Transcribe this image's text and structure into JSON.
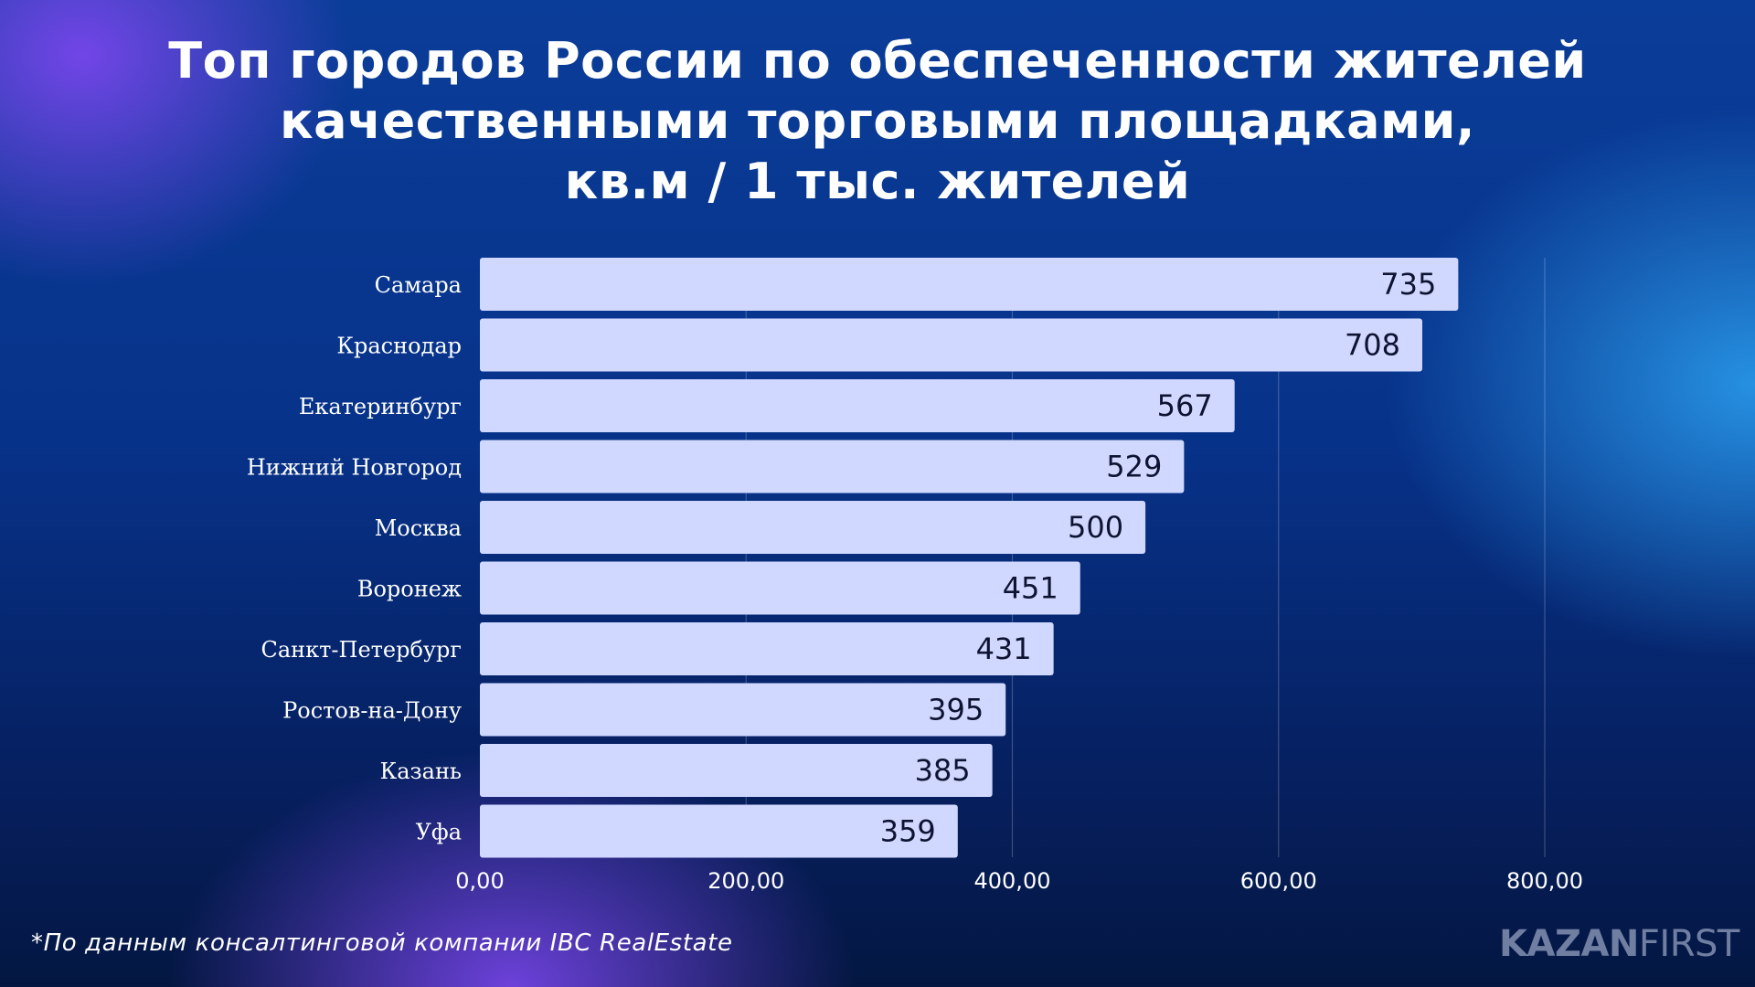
{
  "title_lines": [
    "Топ городов России по обеспеченности жителей",
    "качественными торговыми площадками,",
    "кв.м / 1 тыс. жителей"
  ],
  "footnote": "*По данным консалтинговой компании IBC RealEstate",
  "logo": {
    "bold": "KAZAN",
    "light": "FIRST"
  },
  "colors": {
    "bar": "#d0d8ff",
    "background": "#08398f",
    "text": "#ffffff"
  },
  "chart_data": {
    "type": "bar",
    "orientation": "horizontal",
    "title": "Топ городов России по обеспеченности жителей качественными торговыми площадками, кв.м / 1 тыс. жителей",
    "categories": [
      "Самара",
      "Краснодар",
      "Екатеринбург",
      "Нижний Новгород",
      "Москва",
      "Воронеж",
      "Санкт-Петербург",
      "Ростов-на-Дону",
      "Казань",
      "Уфа"
    ],
    "values": [
      735,
      708,
      567,
      529,
      500,
      451,
      431,
      395,
      385,
      359
    ],
    "value_labels": [
      "735",
      "708",
      "567",
      "529",
      "500",
      "451",
      "431",
      "395",
      "385",
      "359"
    ],
    "xlim": [
      0,
      800
    ],
    "xticks": [
      0,
      200,
      400,
      600,
      800
    ],
    "xtick_labels": [
      "0,00",
      "200,00",
      "400,00",
      "600,00",
      "800,00"
    ],
    "grid": true,
    "legend": "none"
  }
}
